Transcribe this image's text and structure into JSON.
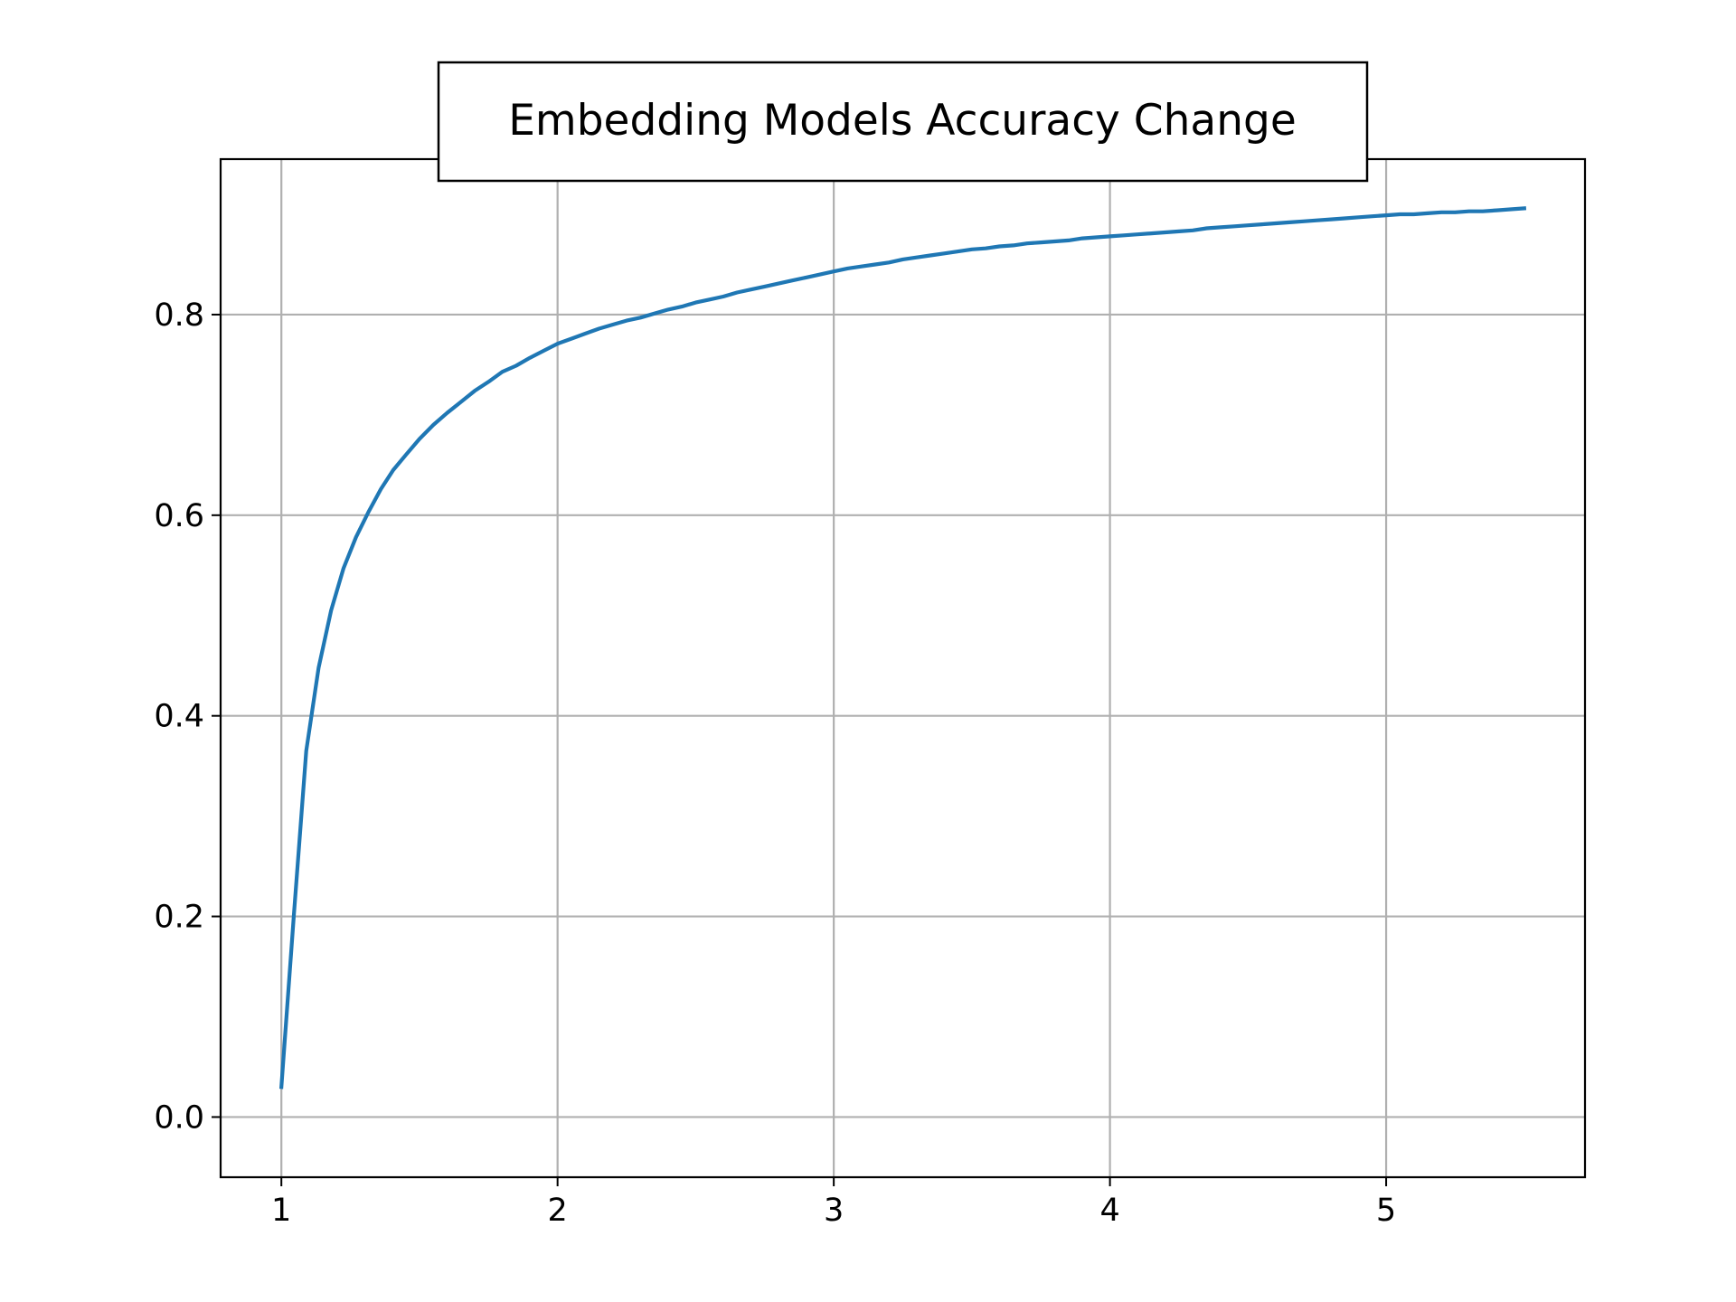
{
  "chart_data": {
    "type": "line",
    "title": "Embedding Models Accuracy Change",
    "xlabel": "",
    "ylabel": "",
    "xlim": [
      0.78,
      5.72
    ],
    "ylim": [
      -0.06,
      0.955
    ],
    "xticks": [
      1,
      2,
      3,
      4,
      5
    ],
    "xtick_labels": [
      "1",
      "2",
      "3",
      "4",
      "5"
    ],
    "yticks": [
      0.0,
      0.2,
      0.4,
      0.6,
      0.8
    ],
    "ytick_labels": [
      "0.0",
      "0.2",
      "0.4",
      "0.6",
      "0.8"
    ],
    "grid": true,
    "series_color": "#1f77b4",
    "grid_color": "#b0b0b0",
    "series": [
      {
        "x": [
          1.0,
          1.045,
          1.09,
          1.135,
          1.18,
          1.225,
          1.27,
          1.315,
          1.36,
          1.405,
          1.45,
          1.5,
          1.55,
          1.6,
          1.65,
          1.7,
          1.75,
          1.8,
          1.85,
          1.9,
          1.95,
          2.0,
          2.05,
          2.1,
          2.15,
          2.2,
          2.25,
          2.3,
          2.35,
          2.4,
          2.45,
          2.5,
          2.55,
          2.6,
          2.65,
          2.7,
          2.75,
          2.8,
          2.85,
          2.9,
          2.95,
          3.0,
          3.05,
          3.1,
          3.15,
          3.2,
          3.25,
          3.3,
          3.35,
          3.4,
          3.45,
          3.5,
          3.55,
          3.6,
          3.65,
          3.7,
          3.75,
          3.8,
          3.85,
          3.9,
          3.95,
          4.0,
          4.05,
          4.1,
          4.15,
          4.2,
          4.25,
          4.3,
          4.35,
          4.4,
          4.45,
          4.5,
          4.55,
          4.6,
          4.65,
          4.7,
          4.75,
          4.8,
          4.85,
          4.9,
          4.95,
          5.0,
          5.05,
          5.1,
          5.15,
          5.2,
          5.25,
          5.3,
          5.35,
          5.4,
          5.45,
          5.5
        ],
        "y": [
          0.03,
          0.2,
          0.365,
          0.448,
          0.505,
          0.547,
          0.578,
          0.603,
          0.626,
          0.645,
          0.66,
          0.676,
          0.69,
          0.702,
          0.713,
          0.724,
          0.733,
          0.743,
          0.749,
          0.757,
          0.764,
          0.771,
          0.776,
          0.781,
          0.786,
          0.79,
          0.794,
          0.797,
          0.801,
          0.805,
          0.808,
          0.812,
          0.815,
          0.818,
          0.822,
          0.825,
          0.828,
          0.831,
          0.834,
          0.837,
          0.84,
          0.843,
          0.846,
          0.848,
          0.85,
          0.852,
          0.855,
          0.857,
          0.859,
          0.861,
          0.863,
          0.865,
          0.866,
          0.868,
          0.869,
          0.871,
          0.872,
          0.873,
          0.874,
          0.876,
          0.877,
          0.878,
          0.879,
          0.88,
          0.881,
          0.882,
          0.883,
          0.884,
          0.886,
          0.887,
          0.888,
          0.889,
          0.89,
          0.891,
          0.892,
          0.893,
          0.894,
          0.895,
          0.896,
          0.897,
          0.898,
          0.899,
          0.9,
          0.9,
          0.901,
          0.902,
          0.902,
          0.903,
          0.903,
          0.904,
          0.905,
          0.906
        ]
      }
    ]
  }
}
